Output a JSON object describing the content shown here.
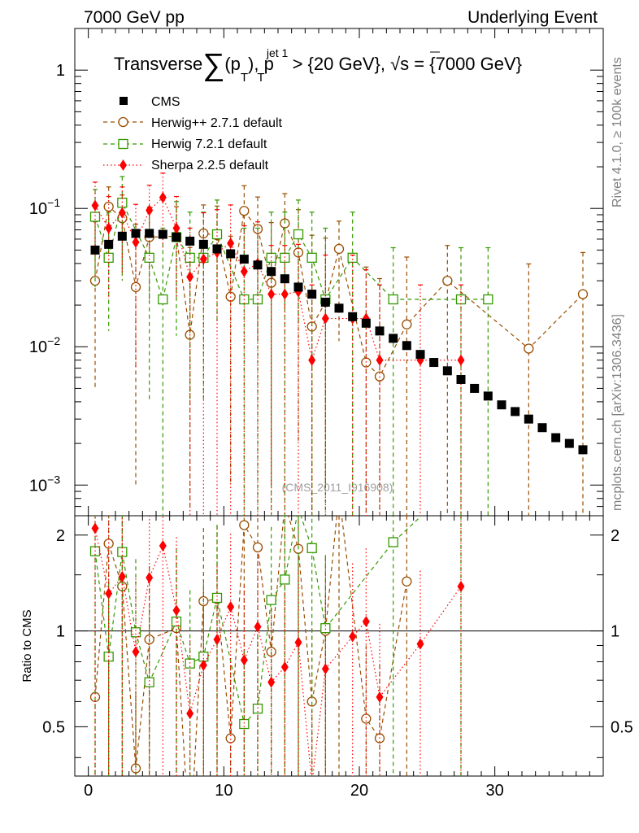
{
  "header": {
    "left": "7000 GeV pp",
    "right": "Underlying Event"
  },
  "side_labels": {
    "rivet": "Rivet 4.1.0, ≥ 100k events",
    "mcplots": "mcplots.cern.ch [arXiv:1306.3436]"
  },
  "chart_data": {
    "type": "scatter",
    "title": "Transverse ∑(p_T), p_T^jet 1 > {20 GeV}, √s = {7000 GeV}",
    "title_parts": {
      "t1": "Transverse",
      "sigma": "∑",
      "t2": "(p",
      "t2_sub": "T",
      "t3": "), p",
      "t3_sub": "T",
      "t3_sup": "jet 1",
      "t4": " > {20 GeV}, ",
      "sqrt": "√",
      "t5": "s = {7000 GeV}"
    },
    "watermark": "(CMS_2011_I916908)",
    "xlim": [
      -1,
      38
    ],
    "main": {
      "yscale": "log",
      "ylim": [
        0.0006,
        2.0
      ],
      "yticks": [
        {
          "v": 1,
          "base": "1",
          "exp": ""
        },
        {
          "v": 0.1,
          "base": "10",
          "exp": "−1"
        },
        {
          "v": 0.01,
          "base": "10",
          "exp": "−2"
        },
        {
          "v": 0.001,
          "base": "10",
          "exp": "−3"
        }
      ]
    },
    "ratio": {
      "ylabel": "Ratio to CMS",
      "ylim": [
        0.35,
        2.3
      ],
      "yticks": [
        {
          "v": 2,
          "label": "2"
        },
        {
          "v": 1,
          "label": "1"
        },
        {
          "v": 0.5,
          "label": "0.5"
        }
      ]
    },
    "xticks": [
      {
        "v": 0,
        "label": "0"
      },
      {
        "v": 10,
        "label": "10"
      },
      {
        "v": 20,
        "label": "20"
      },
      {
        "v": 30,
        "label": "30"
      }
    ],
    "legend": [
      {
        "name": "CMS",
        "key": "cms"
      },
      {
        "name": "Herwig++ 2.7.1 default",
        "key": "herwigpp"
      },
      {
        "name": "Herwig 7.2.1 default",
        "key": "herwig7"
      },
      {
        "name": "Sherpa 2.2.5 default",
        "key": "sherpa"
      }
    ],
    "series": [
      {
        "key": "cms",
        "name": "CMS",
        "color": "#000000",
        "marker": "square-filled",
        "line": "none",
        "x": [
          0.5,
          1.5,
          2.5,
          3.5,
          4.5,
          5.5,
          6.5,
          7.5,
          8.5,
          9.5,
          10.5,
          11.5,
          12.5,
          13.5,
          14.5,
          15.5,
          16.5,
          17.5,
          18.5,
          19.5,
          20.5,
          21.5,
          22.5,
          23.5,
          24.5,
          25.5,
          26.5,
          27.5,
          28.5,
          29.5,
          30.5,
          31.5,
          32.5,
          33.5,
          34.5,
          35.5,
          36.5
        ],
        "y": [
          0.05,
          0.055,
          0.063,
          0.066,
          0.066,
          0.065,
          0.062,
          0.058,
          0.055,
          0.051,
          0.047,
          0.043,
          0.039,
          0.035,
          0.031,
          0.027,
          0.024,
          0.021,
          0.019,
          0.0165,
          0.0148,
          0.013,
          0.0115,
          0.0102,
          0.0088,
          0.0077,
          0.0067,
          0.0058,
          0.005,
          0.0044,
          0.0038,
          0.0034,
          0.003,
          0.0026,
          0.0022,
          0.002,
          0.0018
        ],
        "ratio": []
      },
      {
        "key": "herwigpp",
        "name": "Herwig++ 2.7.1 default",
        "color": "#994d00",
        "marker": "circle-open",
        "line": "dashed",
        "x": [
          0.5,
          1.5,
          2.5,
          3.5,
          4.5,
          6.5,
          7.5,
          8.5,
          9.5,
          10.5,
          11.5,
          12.5,
          13.5,
          14.5,
          15.5,
          16.5,
          17.5,
          18.5,
          20.5,
          21.5,
          23.5,
          26.5,
          32.5,
          36.5
        ],
        "y": [
          0.03,
          0.103,
          0.085,
          0.027,
          0.062,
          0.063,
          0.0122,
          0.066,
          0.064,
          0.023,
          0.096,
          0.071,
          0.029,
          0.078,
          0.048,
          0.014,
          0.021,
          0.051,
          0.0077,
          0.0061,
          0.0145,
          0.03,
          0.0097,
          0.024
        ],
        "err_hi": [
          0.05,
          0.04,
          0.04,
          0.05,
          0.04,
          0.04,
          0.04,
          0.04,
          0.04,
          0.04,
          0.05,
          0.05,
          0.05,
          0.05,
          0.05,
          0.05,
          0.04,
          0.03,
          0.03,
          0.025,
          0.03,
          0.024,
          0.03,
          0.024
        ],
        "err_lo": [
          0.025,
          0.05,
          0.05,
          0.026,
          0.04,
          0.04,
          0.0115,
          0.04,
          0.04,
          0.022,
          0.06,
          0.06,
          0.028,
          0.06,
          0.046,
          0.0139,
          0.02,
          0.04,
          0.0076,
          0.006,
          0.0144,
          0.0299,
          0.0096,
          0.0239
        ],
        "ratio_x": [
          0.5,
          1.5,
          2.5,
          3.5,
          4.5,
          6.5,
          7.5,
          8.5,
          9.5,
          10.5,
          11.5,
          12.5,
          13.5,
          14.5,
          15.5,
          16.5,
          17.5,
          18.5,
          20.5,
          21.5,
          23.5
        ],
        "ratio_y": [
          0.62,
          1.88,
          1.38,
          0.37,
          0.94,
          1.02,
          0.21,
          1.24,
          1.26,
          0.46,
          2.15,
          1.83,
          0.86,
          2.5,
          1.81,
          0.6,
          1.0,
          2.7,
          0.53,
          0.46,
          1.43
        ]
      },
      {
        "key": "herwig7",
        "name": "Herwig 7.2.1 default",
        "color": "#339900",
        "marker": "square-open",
        "line": "dashed",
        "x": [
          0.5,
          1.5,
          2.5,
          4.5,
          5.5,
          6.5,
          7.5,
          8.5,
          9.5,
          11.5,
          12.5,
          13.5,
          14.5,
          15.5,
          16.5,
          17.5,
          19.5,
          22.5,
          27.5,
          29.5
        ],
        "y": [
          0.087,
          0.044,
          0.11,
          0.044,
          0.022,
          0.062,
          0.044,
          0.044,
          0.065,
          0.022,
          0.022,
          0.044,
          0.044,
          0.065,
          0.044,
          0.022,
          0.044,
          0.022,
          0.022,
          0.022
        ],
        "err_hi": [
          0.05,
          0.05,
          0.06,
          0.05,
          0.05,
          0.05,
          0.05,
          0.05,
          0.05,
          0.05,
          0.05,
          0.05,
          0.05,
          0.05,
          0.05,
          0.05,
          0.05,
          0.03,
          0.03,
          0.03
        ],
        "err_lo": [
          0.06,
          0.031,
          0.08,
          0.04,
          0.0219,
          0.05,
          0.04,
          0.04,
          0.05,
          0.0219,
          0.0219,
          0.0439,
          0.0439,
          0.05,
          0.0439,
          0.0219,
          0.0439,
          0.0219,
          0.0219,
          0.0219
        ],
        "ratio_x": [
          0.5,
          1.5,
          2.5,
          3.5,
          4.5,
          6.5,
          7.5,
          8.5,
          9.5,
          11.5,
          12.5,
          13.5,
          14.5,
          15.5,
          16.5,
          17.5,
          22.5,
          27.5
        ],
        "ratio_y": [
          1.78,
          0.83,
          1.77,
          0.99,
          0.69,
          1.07,
          0.79,
          0.83,
          1.27,
          0.51,
          0.57,
          1.25,
          1.45,
          2.42,
          1.82,
          1.02,
          1.9,
          3.0
        ]
      },
      {
        "key": "sherpa",
        "name": "Sherpa 2.2.5 default",
        "color": "#ff0000",
        "marker": "diamond-filled",
        "line": "dotted",
        "x": [
          0.5,
          1.5,
          2.5,
          3.5,
          4.5,
          5.5,
          6.5,
          7.5,
          8.5,
          9.5,
          10.5,
          11.5,
          12.5,
          13.5,
          14.5,
          15.5,
          16.5,
          17.5,
          19.5,
          20.5,
          21.5,
          24.5,
          27.5
        ],
        "y": [
          0.105,
          0.072,
          0.093,
          0.057,
          0.097,
          0.12,
          0.072,
          0.032,
          0.043,
          0.048,
          0.056,
          0.035,
          0.04,
          0.024,
          0.024,
          0.025,
          0.008,
          0.016,
          0.016,
          0.016,
          0.008,
          0.008,
          0.008
        ],
        "err_hi": [
          0.05,
          0.05,
          0.05,
          0.05,
          0.05,
          0.06,
          0.05,
          0.04,
          0.05,
          0.05,
          0.05,
          0.04,
          0.04,
          0.03,
          0.03,
          0.03,
          0.02,
          0.03,
          0.03,
          0.02,
          0.02,
          0.02,
          0.02
        ],
        "err_lo": [
          0.06,
          0.05,
          0.06,
          0.05,
          0.06,
          0.07,
          0.05,
          0.0319,
          0.0429,
          0.0479,
          0.0559,
          0.0349,
          0.0399,
          0.0239,
          0.0239,
          0.0249,
          0.0079,
          0.0159,
          0.0159,
          0.0159,
          0.0079,
          0.0079,
          0.0079
        ],
        "ratio_x": [
          0.5,
          1.5,
          2.5,
          3.5,
          4.5,
          5.5,
          6.5,
          7.5,
          8.5,
          9.5,
          10.5,
          11.5,
          12.5,
          13.5,
          14.5,
          15.5,
          16.5,
          17.5,
          19.5,
          20.5,
          21.5,
          24.5,
          27.5
        ],
        "ratio_y": [
          2.1,
          1.31,
          1.48,
          0.86,
          1.47,
          1.85,
          1.16,
          0.55,
          0.78,
          0.94,
          1.19,
          0.81,
          1.03,
          0.69,
          0.77,
          0.92,
          0.33,
          0.76,
          0.96,
          1.07,
          0.62,
          0.91,
          1.38
        ]
      }
    ]
  }
}
